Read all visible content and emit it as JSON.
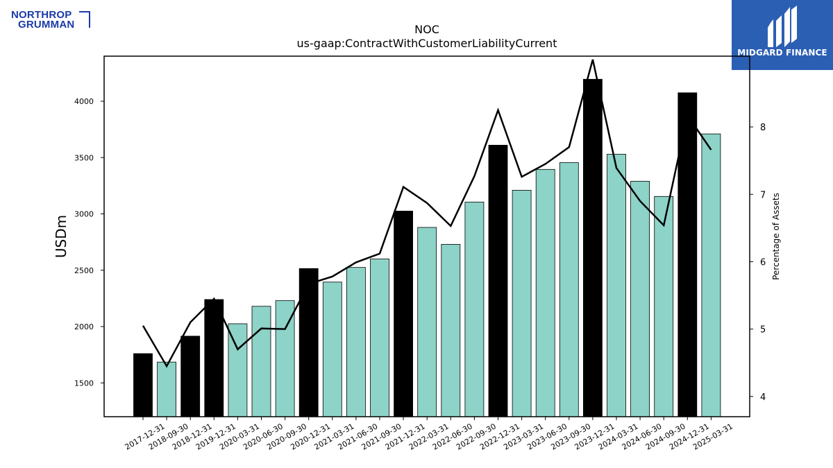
{
  "logos": {
    "company": [
      "NORTHROP",
      "GRUMMAN"
    ],
    "brand": "MIDGARD FINANCE"
  },
  "chart_data": {
    "type": "bar",
    "title": "NOC",
    "subtitle": "us-gaap:ContractWithCustomerLiabilityCurrent",
    "ylabel": "USDm",
    "y2label": "Percentage of Assets",
    "ylim": [
      1200,
      4400
    ],
    "y2lim": [
      3.7,
      9.05
    ],
    "yticks": [
      1500,
      2000,
      2500,
      3000,
      3500,
      4000
    ],
    "y2ticks": [
      4,
      5,
      6,
      7,
      8
    ],
    "colors": {
      "annual": "#000000",
      "quarterly": "#8dd3c7",
      "line": "#000000"
    },
    "categories": [
      "2017-12-31",
      "2018-09-30",
      "2018-12-31",
      "2019-12-31",
      "2020-03-31",
      "2020-06-30",
      "2020-09-30",
      "2020-12-31",
      "2021-03-31",
      "2021-06-30",
      "2021-09-30",
      "2021-12-31",
      "2022-03-31",
      "2022-06-30",
      "2022-09-30",
      "2022-12-31",
      "2023-03-31",
      "2023-06-30",
      "2023-09-30",
      "2023-12-31",
      "2024-03-31",
      "2024-06-30",
      "2024-09-30",
      "2024-12-31",
      "2025-03-31"
    ],
    "series": [
      {
        "type": "bar",
        "values": [
          1760,
          1685,
          1915,
          2240,
          2025,
          2180,
          2230,
          2515,
          2395,
          2525,
          2600,
          3025,
          2880,
          2730,
          3105,
          3610,
          3210,
          3395,
          3455,
          4195,
          3530,
          3290,
          3155,
          4075,
          3710
        ],
        "annual": [
          true,
          false,
          true,
          true,
          false,
          false,
          false,
          true,
          false,
          false,
          false,
          true,
          false,
          false,
          false,
          true,
          false,
          false,
          false,
          true,
          false,
          false,
          false,
          true,
          false
        ]
      },
      {
        "type": "line",
        "axis": "right",
        "values": [
          5.05,
          4.45,
          5.1,
          5.45,
          4.7,
          5.01,
          5.0,
          5.67,
          5.78,
          5.99,
          6.12,
          7.11,
          6.87,
          6.53,
          7.27,
          8.25,
          7.26,
          7.45,
          7.7,
          9.0,
          7.39,
          6.9,
          6.54,
          8.17,
          7.66
        ]
      }
    ]
  }
}
